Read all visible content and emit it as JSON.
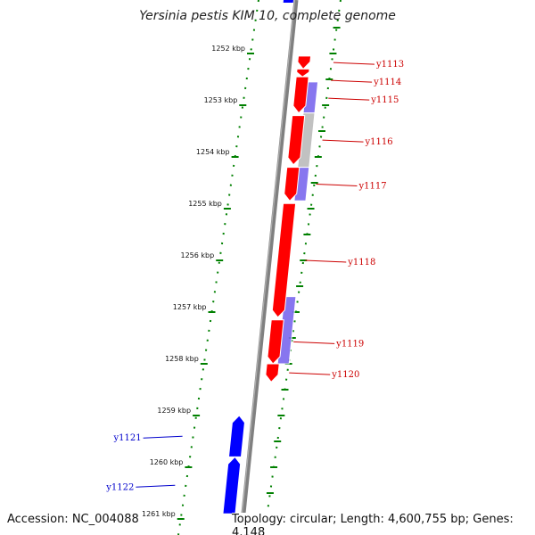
{
  "title": "Yersinia pestis KIM 10, complete genome",
  "accession_text": "Accession: NC_004088",
  "topology_text": "Topology: circular; Length: 4,600,755 bp; Genes: 4,148",
  "colors": {
    "forward_gene": "#ff0000",
    "reverse_gene": "#0000ff",
    "feature_purple": "#7b68ee",
    "feature_gray": "#bbbbbb",
    "label_forward": "#cc0000",
    "label_reverse": "#0000cc",
    "tick": "#008000",
    "backbone": "#808080"
  },
  "scale": {
    "unit": "kbp",
    "ticks": [
      {
        "value": 1252,
        "label": "1252 kbp"
      },
      {
        "value": 1253,
        "label": "1253 kbp"
      },
      {
        "value": 1254,
        "label": "1254 kbp"
      },
      {
        "value": 1255,
        "label": "1255 kbp"
      },
      {
        "value": 1256,
        "label": "1256 kbp"
      },
      {
        "value": 1257,
        "label": "1257 kbp"
      },
      {
        "value": 1258,
        "label": "1258 kbp"
      },
      {
        "value": 1259,
        "label": "1259 kbp"
      },
      {
        "value": 1260,
        "label": "1260 kbp"
      },
      {
        "value": 1261,
        "label": "1261 kbp"
      }
    ]
  },
  "genes": [
    {
      "name": "y1113",
      "strand": "+",
      "start": 1252.05,
      "end": 1252.3,
      "label_color": "#cc0000"
    },
    {
      "name": "y1114",
      "strand": "+",
      "start": 1252.3,
      "end": 1252.45,
      "label_color": "#cc0000"
    },
    {
      "name": "y1115",
      "strand": "+",
      "start": 1252.45,
      "end": 1253.15,
      "label_color": "#cc0000"
    },
    {
      "name": "y1116",
      "strand": "+",
      "start": 1253.2,
      "end": 1254.15,
      "label_color": "#cc0000"
    },
    {
      "name": "y1117",
      "strand": "+",
      "start": 1254.2,
      "end": 1254.85,
      "label_color": "#cc0000"
    },
    {
      "name": "y1118",
      "strand": "+",
      "start": 1254.9,
      "end": 1257.1,
      "label_color": "#cc0000"
    },
    {
      "name": "y1119",
      "strand": "+",
      "start": 1257.15,
      "end": 1258.0,
      "label_color": "#cc0000"
    },
    {
      "name": "y1120",
      "strand": "+",
      "start": 1258.0,
      "end": 1258.35,
      "label_color": "#cc0000"
    },
    {
      "name": "y1121",
      "strand": "-",
      "start": 1259.0,
      "end": 1259.8,
      "label_color": "#0000cc"
    },
    {
      "name": "y1122",
      "strand": "-",
      "start": 1259.8,
      "end": 1260.9,
      "label_color": "#0000cc"
    }
  ],
  "features": [
    {
      "kind": "purple",
      "start": 1252.55,
      "end": 1253.15
    },
    {
      "kind": "gray",
      "start": 1253.15,
      "end": 1254.2
    },
    {
      "kind": "purple",
      "start": 1254.2,
      "end": 1254.85
    },
    {
      "kind": "purple",
      "start": 1256.7,
      "end": 1258.0
    }
  ]
}
